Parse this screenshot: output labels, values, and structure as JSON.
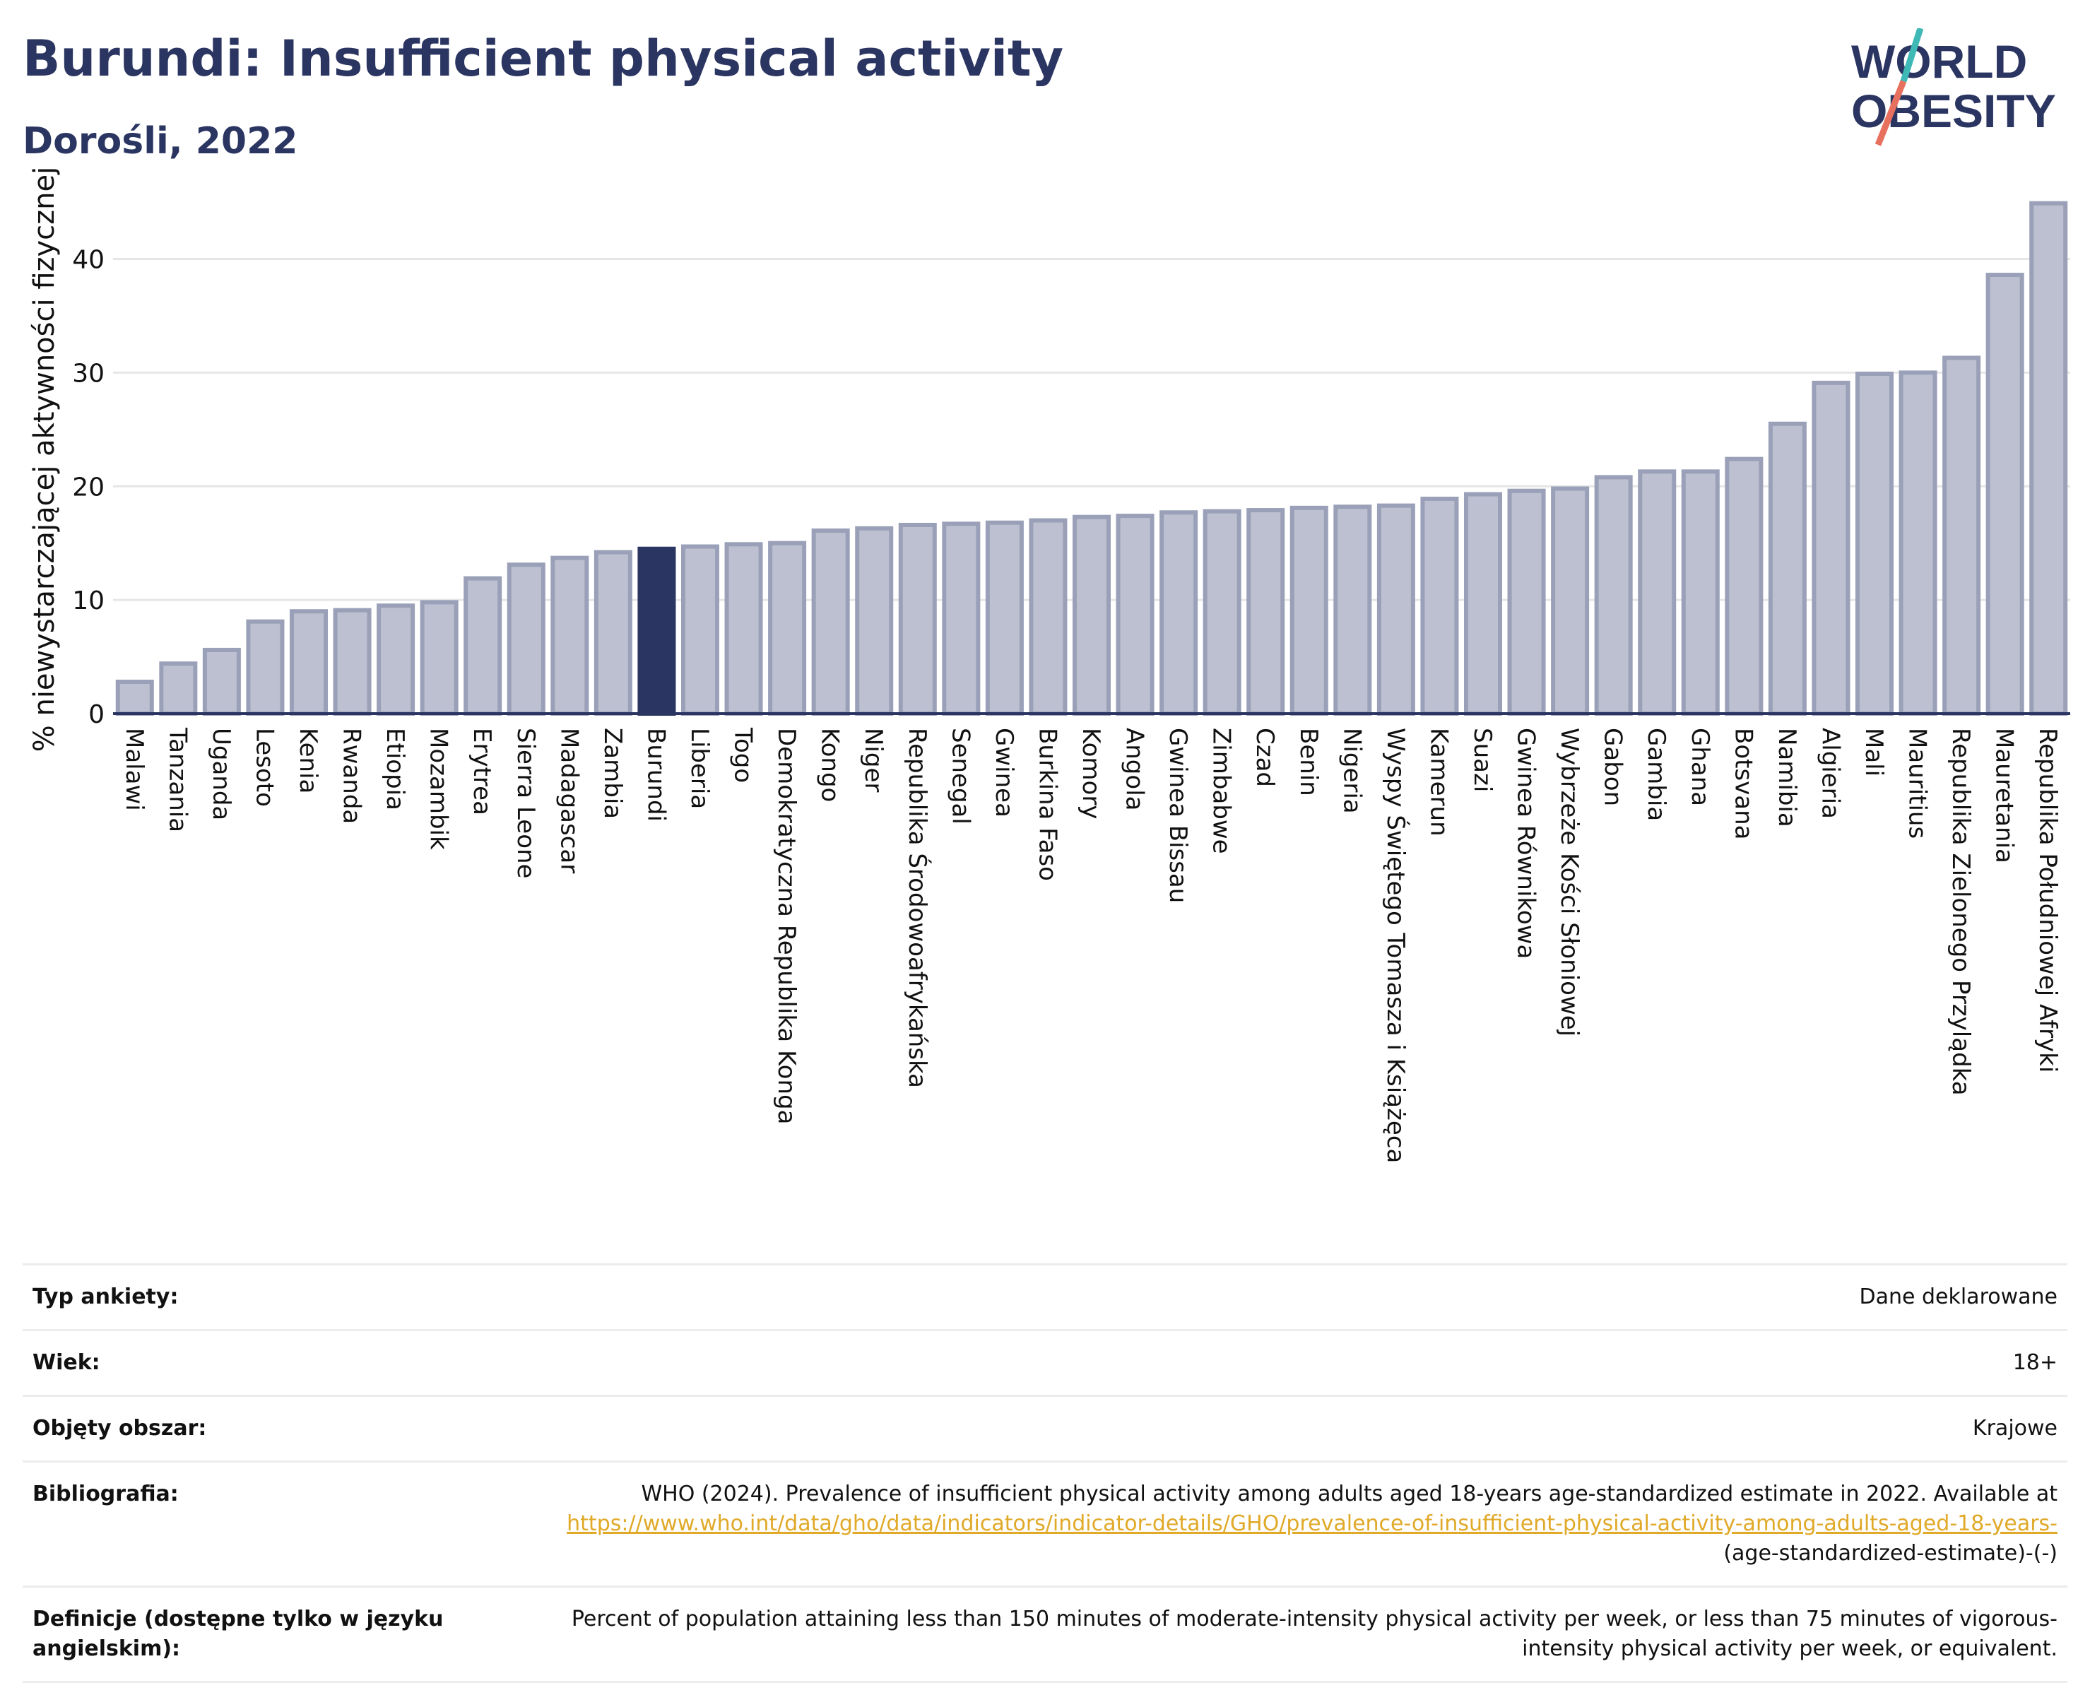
{
  "header": {
    "title": "Burundi: Insufficient physical activity",
    "subtitle": "Dorośli, 2022",
    "logo_line1": "WORLD",
    "logo_line2": "OBESITY"
  },
  "colors": {
    "bar": "#bcc0d0",
    "bar_stroke": "#9aa0b8",
    "highlight": "#2b3561",
    "grid": "#e6e6e6",
    "axis": "#2b3561",
    "logo_teal": "#3fb9b6",
    "logo_coral": "#e8705f",
    "link": "#e0a928"
  },
  "chart_data": {
    "type": "bar",
    "ylabel": "% niewystarczającej aktywności fizycznej",
    "ylim": [
      0,
      46
    ],
    "yticks": [
      0,
      10,
      20,
      30,
      40
    ],
    "grid": true,
    "highlight": "Burundi",
    "categories": [
      "Malawi",
      "Tanzania",
      "Uganda",
      "Lesoto",
      "Kenia",
      "Rwanda",
      "Etiopia",
      "Mozambik",
      "Erytrea",
      "Sierra Leone",
      "Madagascar",
      "Zambia",
      "Burundi",
      "Liberia",
      "Togo",
      "Demokratyczna Republika Konga",
      "Kongo",
      "Niger",
      "Republika Środowoafrykańska",
      "Senegal",
      "Gwinea",
      "Burkina Faso",
      "Komory",
      "Angola",
      "Gwinea Bissau",
      "Zimbabwe",
      "Czad",
      "Benin",
      "Nigeria",
      "Wyspy Świętego Tomasza i Książęca",
      "Kamerun",
      "Suazi",
      "Gwinea Równikowa",
      "Wybrzeże Kości Słoniowej",
      "Gabon",
      "Gambia",
      "Ghana",
      "Botsvana",
      "Namibia",
      "Algieria",
      "Mali",
      "Mauritius",
      "Republika Zielonego Przylądka",
      "Mauretania",
      "Republika Południowej Afryki"
    ],
    "values": [
      2.8,
      4.4,
      5.6,
      8.1,
      9.0,
      9.1,
      9.5,
      9.8,
      11.9,
      13.1,
      13.7,
      14.2,
      14.5,
      14.7,
      14.9,
      15.0,
      16.1,
      16.3,
      16.6,
      16.7,
      16.8,
      17.0,
      17.3,
      17.4,
      17.7,
      17.8,
      17.9,
      18.1,
      18.2,
      18.3,
      18.9,
      19.3,
      19.6,
      19.8,
      20.8,
      21.3,
      21.3,
      22.4,
      25.5,
      29.1,
      29.9,
      30.0,
      31.3,
      38.6,
      44.9
    ]
  },
  "meta": [
    {
      "label": "Typ ankiety:",
      "value": "Dane deklarowane"
    },
    {
      "label": "Wiek:",
      "value": "18+"
    },
    {
      "label": "Objęty obszar:",
      "value": "Krajowe"
    },
    {
      "label": "Bibliografia:",
      "value": "WHO (2024). Prevalence of insufficient physical activity among adults aged 18-years age-standardized estimate in 2022. Available at",
      "link": "https://www.who.int/data/gho/data/indicators/indicator-details/GHO/prevalence-of-insufficient-physical-activity-among-adults-aged-18-years-",
      "suffix": "(age-standardized-estimate)-(-)"
    },
    {
      "label": "Definicje (dostępne tylko w języku angielskim):",
      "value": "Percent of population attaining less than 150 minutes of moderate-intensity physical activity per week, or less than 75 minutes of vigorous-intensity physical activity per week, or equivalent."
    }
  ]
}
